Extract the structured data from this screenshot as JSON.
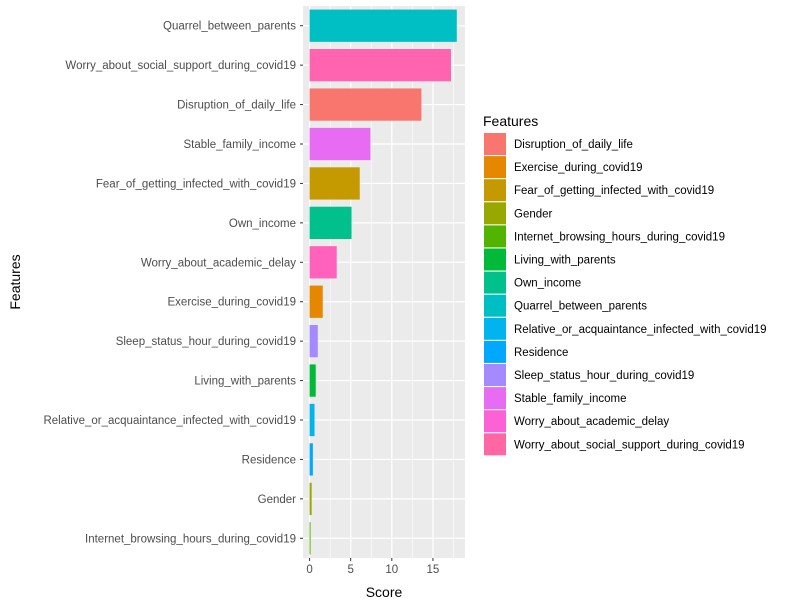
{
  "chart_data": {
    "type": "bar",
    "orientation": "horizontal",
    "xlabel": "Score",
    "ylabel": "Features",
    "xlim": [
      -0.8,
      18.9
    ],
    "x_ticks": [
      0,
      5,
      10,
      15
    ],
    "grid": true,
    "bars": [
      {
        "feature": "Quarrel_between_parents",
        "value": 17.9,
        "color": "#00BFC4"
      },
      {
        "feature": "Worry_about_social_support_during_covid19",
        "value": 17.2,
        "color": "#FF64B0"
      },
      {
        "feature": "Disruption_of_daily_life",
        "value": 13.6,
        "color": "#F8766D"
      },
      {
        "feature": "Stable_family_income",
        "value": 7.4,
        "color": "#E76BF3"
      },
      {
        "feature": "Fear_of_getting_infected_with_covid19",
        "value": 6.1,
        "color": "#C49A00"
      },
      {
        "feature": "Own_income",
        "value": 5.1,
        "color": "#00C08B"
      },
      {
        "feature": "Worry_about_academic_delay",
        "value": 3.3,
        "color": "#FF62BC"
      },
      {
        "feature": "Exercise_during_covid19",
        "value": 1.6,
        "color": "#E58700"
      },
      {
        "feature": "Sleep_status_hour_during_covid19",
        "value": 1.0,
        "color": "#A58AFF"
      },
      {
        "feature": "Living_with_parents",
        "value": 0.75,
        "color": "#00BA38"
      },
      {
        "feature": "Relative_or_acquaintance_infected_with_covid19",
        "value": 0.6,
        "color": "#00B4F0"
      },
      {
        "feature": "Residence",
        "value": 0.4,
        "color": "#00A9FF"
      },
      {
        "feature": "Gender",
        "value": 0.25,
        "color": "#99A800"
      },
      {
        "feature": "Internet_browsing_hours_during_covid19",
        "value": 0.12,
        "color": "#53B400"
      }
    ],
    "legend": {
      "title": "Features",
      "position": "right",
      "items": [
        {
          "label": "Disruption_of_daily_life",
          "color": "#F8766D"
        },
        {
          "label": "Exercise_during_covid19",
          "color": "#E58700"
        },
        {
          "label": "Fear_of_getting_infected_with_covid19",
          "color": "#C49A00"
        },
        {
          "label": "Gender",
          "color": "#99A800"
        },
        {
          "label": "Internet_browsing_hours_during_covid19",
          "color": "#53B400"
        },
        {
          "label": "Living_with_parents",
          "color": "#00BA38"
        },
        {
          "label": "Own_income",
          "color": "#00C08B"
        },
        {
          "label": "Quarrel_between_parents",
          "color": "#00BFC4"
        },
        {
          "label": "Relative_or_acquaintance_infected_with_covid19",
          "color": "#00B4F0"
        },
        {
          "label": "Residence",
          "color": "#00A9FF"
        },
        {
          "label": "Sleep_status_hour_during_covid19",
          "color": "#A58AFF"
        },
        {
          "label": "Stable_family_income",
          "color": "#E76BF3"
        },
        {
          "label": "Worry_about_academic_delay",
          "color": "#FC61D5"
        },
        {
          "label": "Worry_about_social_support_during_covid19",
          "color": "#FF67A4"
        }
      ]
    },
    "panel_background": "#EBEBEB",
    "grid_color": "#FFFFFF"
  }
}
